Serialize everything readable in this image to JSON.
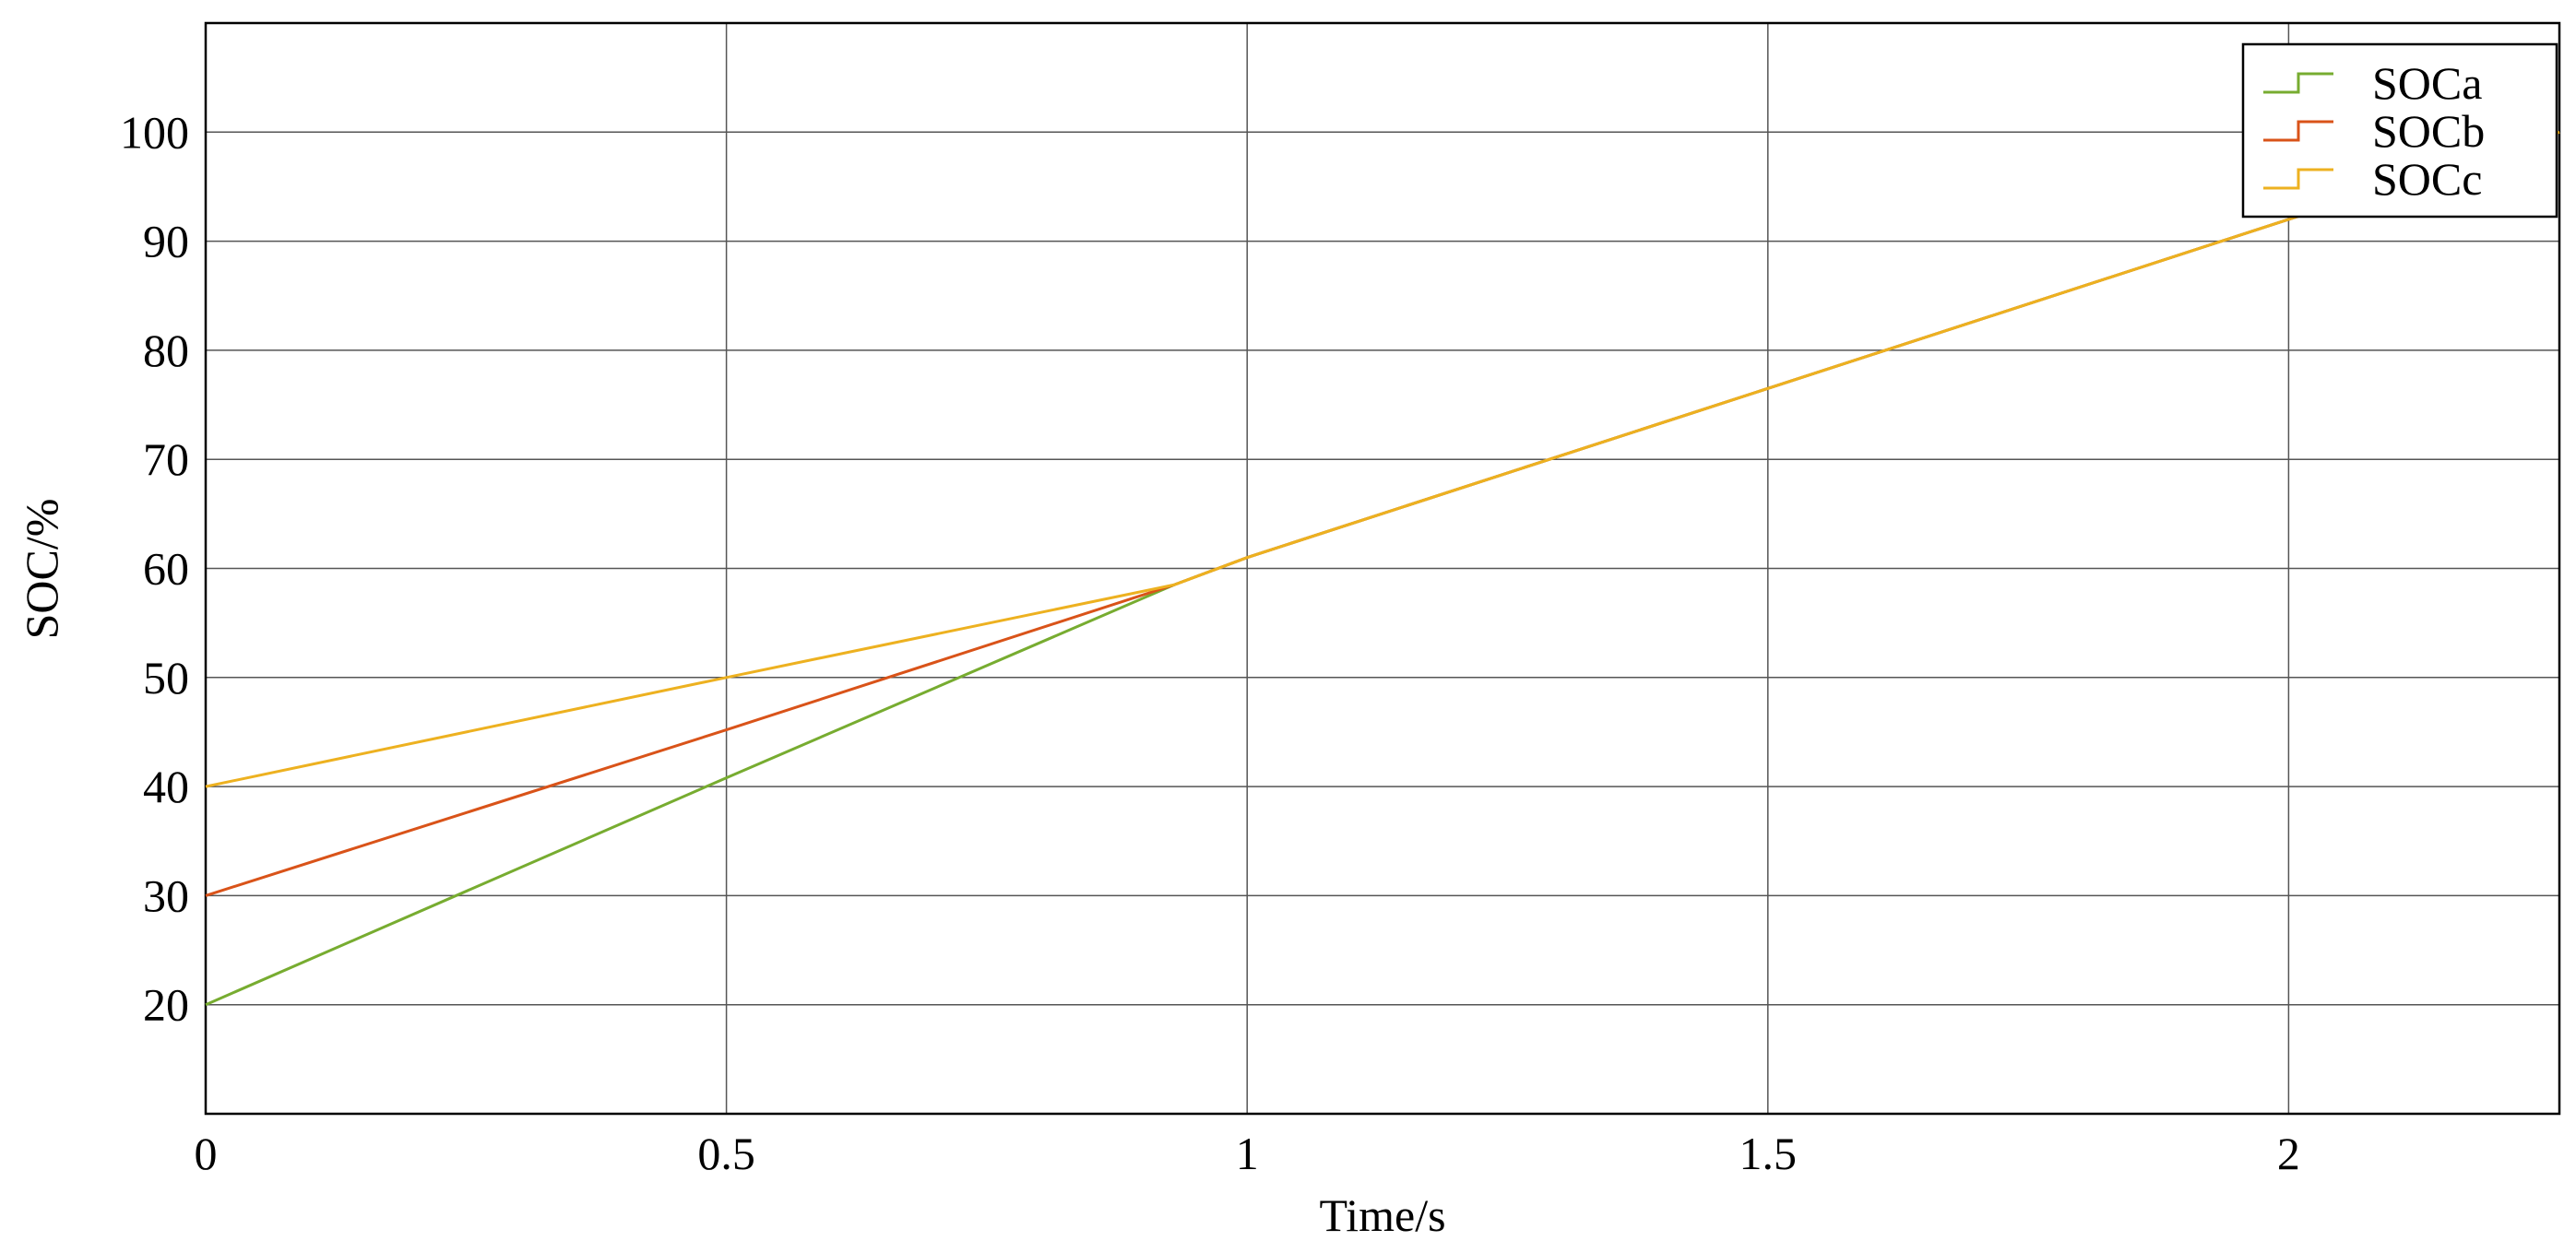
{
  "chart_data": {
    "type": "line",
    "x_label": "Time/s",
    "y_label": "SOC/%",
    "x": [
      0,
      0.5,
      0.93,
      1,
      1.5,
      2,
      2.26
    ],
    "series": [
      {
        "name": "SOCa",
        "color": "#77ac30",
        "values": [
          20,
          40.8,
          58.5,
          61,
          76.5,
          92,
          100
        ]
      },
      {
        "name": "SOCb",
        "color": "#d95319",
        "values": [
          30,
          45.2,
          58.5,
          61,
          76.5,
          92,
          100
        ]
      },
      {
        "name": "SOCc",
        "color": "#edb120",
        "values": [
          40,
          50,
          58.5,
          61,
          76.5,
          92,
          100
        ]
      }
    ],
    "xlim": [
      0,
      2.26
    ],
    "ylim": [
      10,
      110
    ],
    "xticks": [
      0,
      0.5,
      1,
      1.5,
      2
    ],
    "yticks": [
      20,
      30,
      40,
      50,
      60,
      70,
      80,
      90,
      100
    ],
    "grid": true,
    "legend": "upper right"
  }
}
